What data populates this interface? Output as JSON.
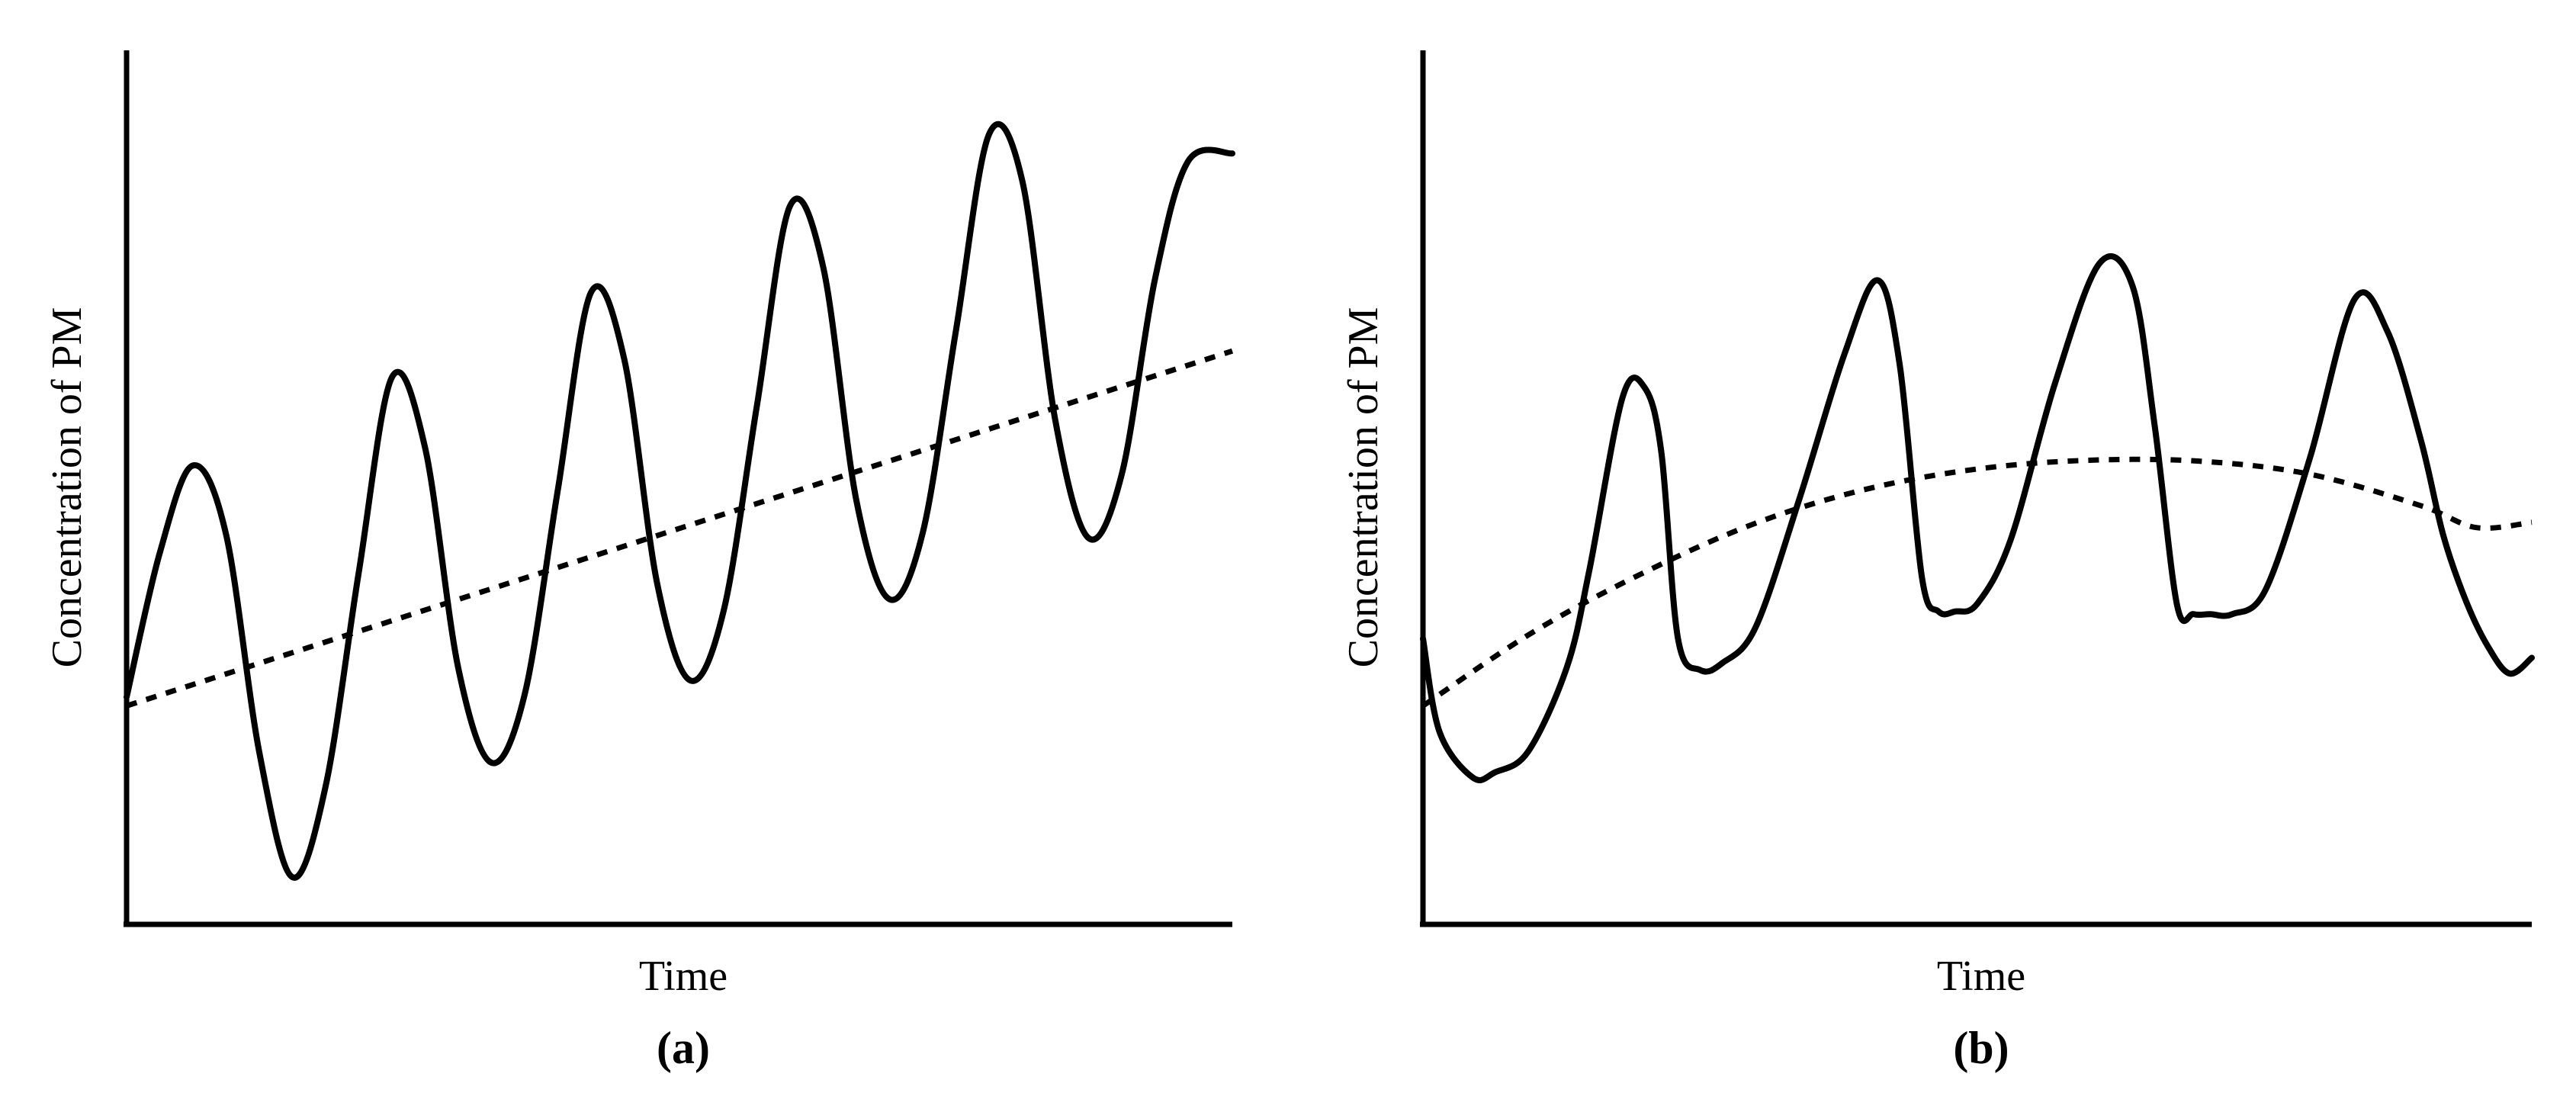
{
  "chart_data": [
    {
      "type": "line",
      "panel_label": "(a)",
      "xlabel": "Time",
      "ylabel": "Concentration of PM",
      "xlim": [
        0,
        100
      ],
      "ylim": [
        0,
        100
      ],
      "show_ticks": false,
      "grid": false,
      "series": [
        {
          "style": "solid",
          "x": [
            0,
            3,
            6,
            9,
            12,
            15,
            18,
            21,
            24,
            27,
            30,
            33,
            36,
            39,
            42,
            45,
            48,
            51,
            54,
            57,
            60,
            63,
            66,
            69,
            72,
            75,
            78,
            81,
            84,
            87,
            90,
            93,
            96,
            100
          ],
          "y": [
            26,
            42.5,
            52.5,
            44.6,
            19.7,
            5.4,
            15.8,
            40.3,
            62.6,
            54.5,
            29.3,
            18.5,
            26.3,
            49.7,
            72.3,
            64.7,
            38.9,
            27.9,
            35.9,
            59.3,
            82.2,
            75.2,
            48.5,
            37.2,
            44.8,
            67.9,
            90.4,
            85.1,
            57.6,
            44.2,
            51.5,
            73.8,
            87.3,
            88.2
          ]
        },
        {
          "style": "dashed",
          "x": [
            0,
            100
          ],
          "y": [
            25,
            65.6
          ]
        }
      ]
    },
    {
      "type": "line",
      "panel_label": "(b)",
      "xlabel": "Time",
      "ylabel": "Concentration of PM",
      "xlim": [
        0,
        100
      ],
      "ylim": [
        0,
        100
      ],
      "show_ticks": false,
      "grid": false,
      "series": [
        {
          "style": "solid",
          "x": [
            0,
            1.5,
            4.5,
            6.5,
            9.5,
            13,
            15,
            18,
            20,
            21.5,
            23,
            25,
            27,
            30,
            34,
            38,
            41,
            43,
            45,
            46.5,
            48,
            50,
            53,
            57,
            61,
            64,
            66,
            68,
            69.5,
            71,
            73,
            76,
            80,
            84,
            87,
            90,
            92,
            94,
            96,
            98,
            100
          ],
          "y": [
            32.7,
            22,
            16.8,
            17.4,
            19.8,
            29.5,
            40.5,
            60.3,
            61.4,
            54,
            32.7,
            29.1,
            29.9,
            34,
            48.9,
            65.2,
            73.7,
            64,
            39.7,
            35.8,
            35.8,
            36.7,
            44,
            61.9,
            75.6,
            73,
            57,
            36.6,
            35.5,
            35.5,
            35.5,
            38.3,
            53.4,
            71.5,
            67.8,
            55.4,
            44.6,
            37.2,
            31.9,
            28.7,
            30.5
          ]
        },
        {
          "style": "dashed",
          "x": [
            0,
            10,
            20,
            30,
            40,
            50,
            60,
            70,
            80,
            90,
            95,
            100
          ],
          "y": [
            25,
            33.5,
            40.3,
            45.9,
            49.8,
            52.1,
            53.1,
            53,
            51.5,
            47.9,
            45.4,
            46
          ]
        }
      ]
    }
  ]
}
